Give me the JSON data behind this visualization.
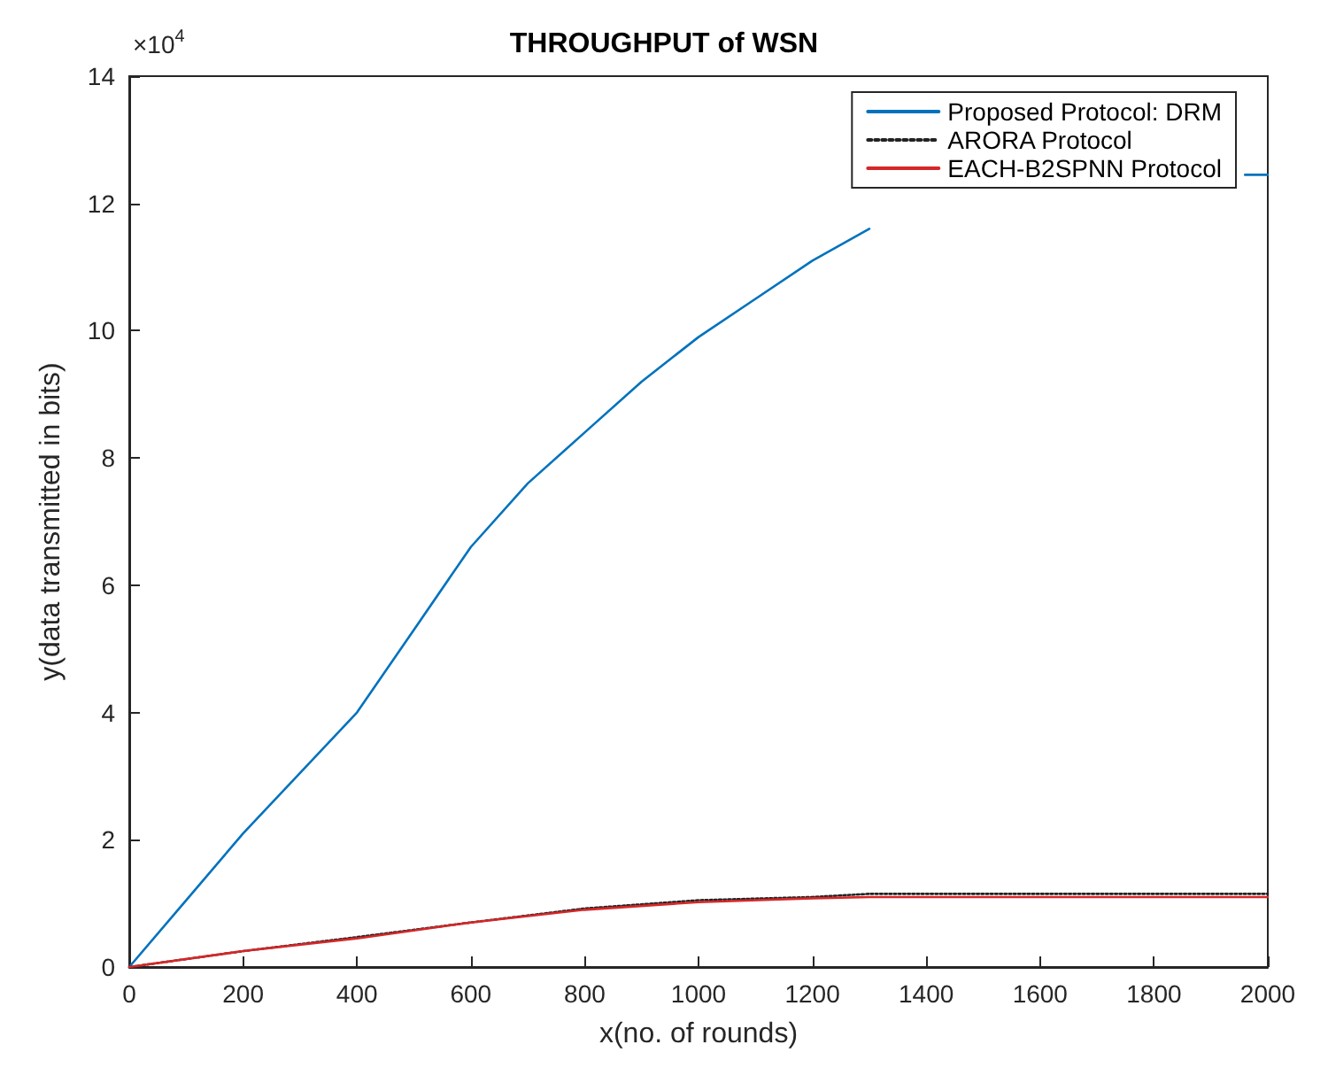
{
  "chart_data": {
    "type": "line",
    "title": "THROUGHPUT of WSN",
    "xlabel": "x(no. of rounds)",
    "ylabel": "y(data transmitted in bits)",
    "annotations": [
      "×10$^{4}$"
    ],
    "xlim": [
      0,
      2000
    ],
    "xticks": [
      0,
      200,
      400,
      600,
      800,
      1000,
      1200,
      1400,
      1600,
      1800,
      2000
    ],
    "ylim": [
      0,
      14
    ],
    "yticks": [
      0,
      2,
      4,
      6,
      8,
      10,
      12,
      14
    ],
    "grid": false,
    "legend": "top right",
    "marker": "none",
    "series": [
      {
        "name": "Proposed Protocol: DRM",
        "color": "#0072bd",
        "line_style": "solid",
        "x": [
          0,
          100,
          200,
          300,
          400,
          500,
          600,
          700,
          800,
          900,
          1000,
          1100,
          1200,
          1300,
          1400,
          1960,
          2000
        ],
        "values": [
          0,
          1.05,
          2.1,
          3.05,
          4.0,
          5.3,
          6.6,
          7.6,
          8.4,
          9.2,
          9.9,
          10.5,
          11.1,
          11.6,
          null,
          12.45,
          12.45
        ]
      },
      {
        "name": "ARORA Protocol",
        "color": "#222222",
        "line_style": "dotted",
        "x": [
          0,
          200,
          400,
          600,
          800,
          1000,
          1200,
          1300,
          1400,
          1600,
          2000
        ],
        "values": [
          0,
          0.25,
          0.47,
          0.7,
          0.92,
          1.05,
          1.1,
          1.15,
          1.15,
          1.15,
          1.15
        ]
      },
      {
        "name": "EACH-B2SPNN Protocol",
        "color": "#d62728",
        "line_style": "solid",
        "x": [
          0,
          200,
          400,
          600,
          800,
          1000,
          1200,
          1300,
          1400,
          1600,
          2000
        ],
        "values": [
          0,
          0.25,
          0.45,
          0.7,
          0.9,
          1.02,
          1.08,
          1.1,
          1.1,
          1.1,
          1.1
        ]
      }
    ]
  }
}
